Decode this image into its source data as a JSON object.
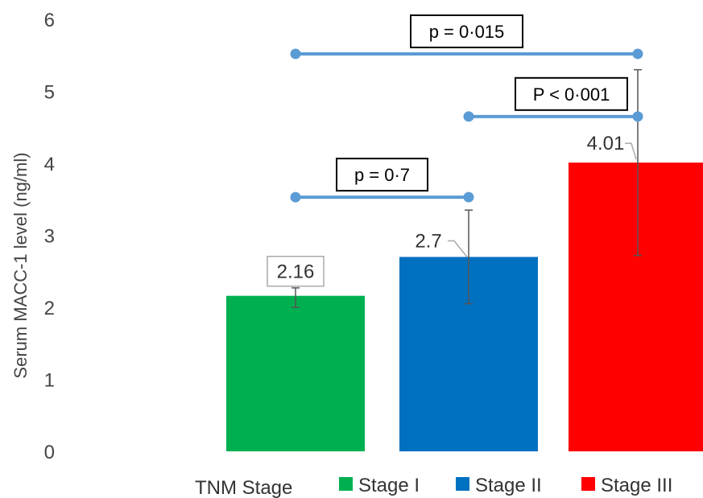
{
  "chart_data": {
    "type": "bar",
    "title": "",
    "ylabel": "Serum MACC-1 level (ng/ml)",
    "ylim": [
      0,
      6
    ],
    "yticks": [
      "0",
      "1",
      "2",
      "3",
      "4",
      "5",
      "6"
    ],
    "grid": false,
    "legend_title": "TNM Stage",
    "legend_position": "bottom",
    "series": [
      {
        "name": "Stage I",
        "value": 2.16,
        "label": "2.16",
        "err_low": 2.0,
        "err_high": 2.27,
        "color": "#00b050",
        "label_boxed": true
      },
      {
        "name": "Stage II",
        "value": 2.7,
        "label": "2.7",
        "err_low": 2.05,
        "err_high": 3.35,
        "color": "#0070c0",
        "label_boxed": false
      },
      {
        "name": "Stage III",
        "value": 4.01,
        "label": "4.01",
        "err_low": 2.72,
        "err_high": 5.3,
        "color": "#ff0000",
        "label_boxed": false
      }
    ],
    "comparisons": [
      {
        "from": 0,
        "to": 2,
        "y": 5.52,
        "text": "p = 0·015"
      },
      {
        "from": 1,
        "to": 2,
        "y": 4.65,
        "text": "P < 0·001"
      },
      {
        "from": 0,
        "to": 1,
        "y": 3.53,
        "text": "p = 0·7"
      }
    ],
    "comparison_color": "#5b9bd5"
  }
}
